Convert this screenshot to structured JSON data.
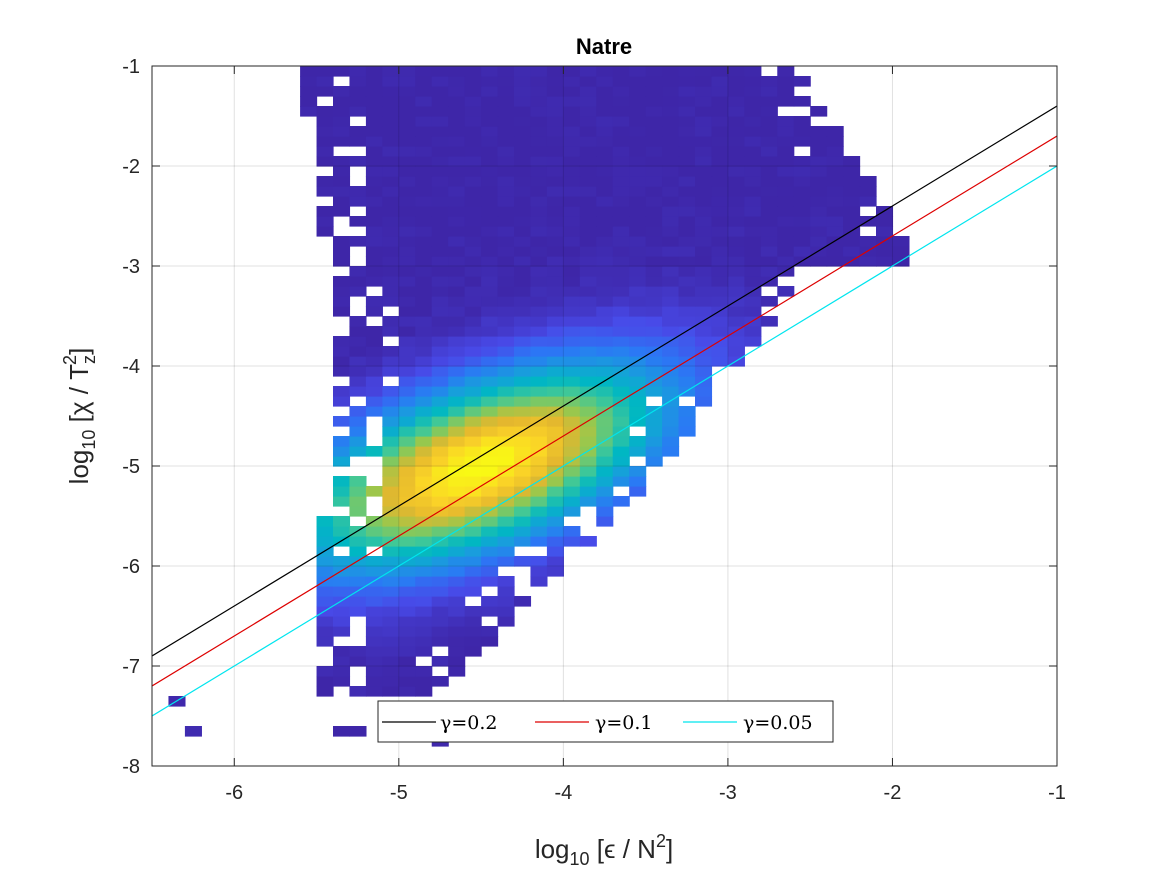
{
  "chart_data": {
    "type": "heatmap",
    "title": "Natre",
    "xlabel": {
      "prefix": "log",
      "sub": "10",
      "body": " [ϵ / N",
      "sup": "2",
      "suffix": "]"
    },
    "ylabel": {
      "prefix": "log",
      "sub": "10",
      "body": " [χ / T",
      "sub2": "z",
      "sup": "2",
      "suffix": "]"
    },
    "xlim": [
      -6.5,
      -1
    ],
    "ylim": [
      -8,
      -1
    ],
    "xticks": [
      -6,
      -5,
      -4,
      -3,
      -2,
      -1
    ],
    "xtick_labels": [
      "-6",
      "-5",
      "-4",
      "-3",
      "-2",
      "-1"
    ],
    "yticks": [
      -8,
      -7,
      -6,
      -5,
      -4,
      -3,
      -2,
      -1
    ],
    "ytick_labels": [
      "-8",
      "-7",
      "-6",
      "-5",
      "-4",
      "-3",
      "-2",
      "-1"
    ],
    "grid": true,
    "colormap": "parula",
    "density_peak": {
      "x": -4.5,
      "y": -5.0
    },
    "lines": [
      {
        "name": "γ=0.2",
        "color": "#000000",
        "x": [
          -6.5,
          -1
        ],
        "y": [
          -6.9,
          -1.4
        ]
      },
      {
        "name": "γ=0.1",
        "color": "#dd0000",
        "x": [
          -6.5,
          -1
        ],
        "y": [
          -7.2,
          -1.7
        ]
      },
      {
        "name": "γ=0.05",
        "color": "#00e5ee",
        "x": [
          -6.5,
          -1
        ],
        "y": [
          -7.5,
          -2.0
        ]
      }
    ],
    "legend": {
      "placement": "bottom-center",
      "orientation": "horizontal"
    }
  }
}
